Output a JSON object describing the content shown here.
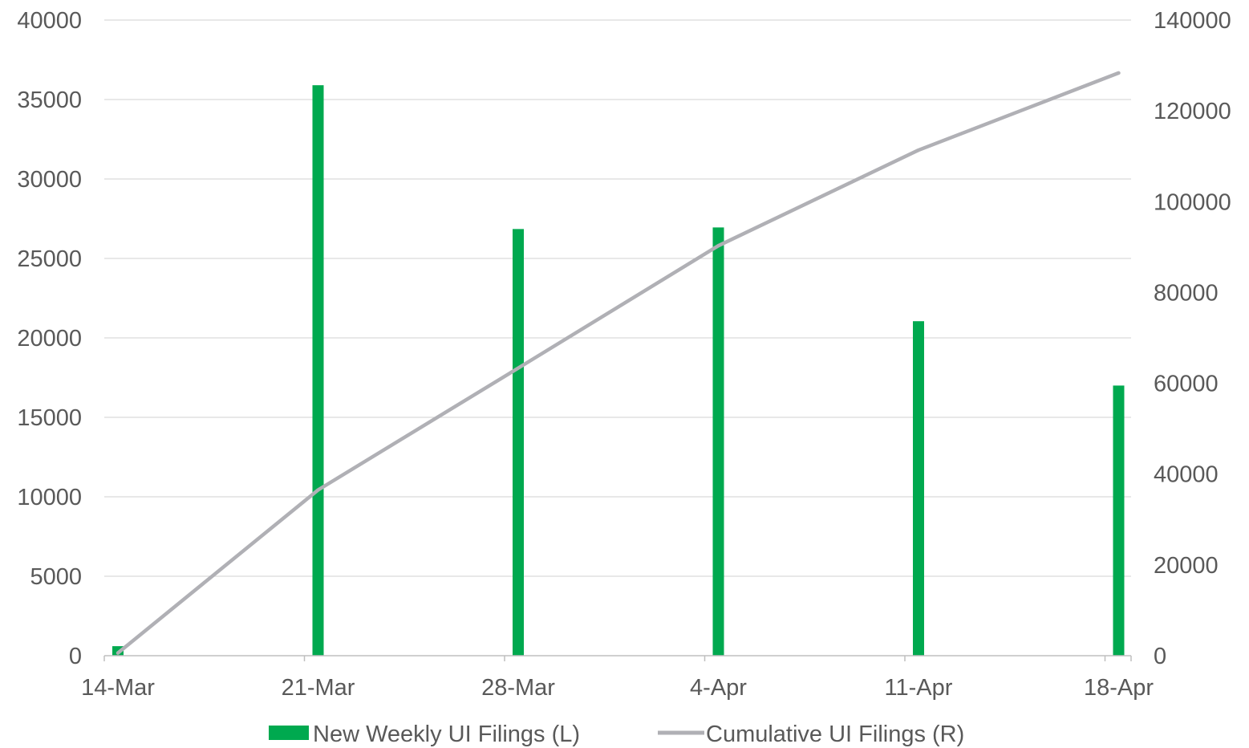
{
  "chart_data": {
    "type": "bar",
    "categories": [
      "14-Mar",
      "21-Mar",
      "28-Mar",
      "4-Apr",
      "11-Apr",
      "18-Apr"
    ],
    "x_tick_labels": [
      "14-Mar",
      "21-Mar",
      "28-Mar",
      "4-Apr",
      "11-Apr",
      "18-Apr"
    ],
    "series": [
      {
        "name": "New Weekly UI Filings (L)",
        "type": "bar",
        "axis": "left",
        "color": "#00A94F",
        "x": [
          "14-Mar",
          "21-Mar",
          "28-Mar",
          "4-Apr",
          "11-Apr",
          "18-Apr"
        ],
        "values": [
          600,
          35900,
          26850,
          26950,
          21050,
          17000
        ]
      },
      {
        "name": "Cumulative UI Filings (R)",
        "type": "line",
        "axis": "right",
        "color": "#B0B0B5",
        "x": [
          "14-Mar",
          "21-Mar",
          "28-Mar",
          "4-Apr",
          "11-Apr",
          "18-Apr"
        ],
        "values": [
          600,
          36500,
          63350,
          90300,
          111350,
          128350
        ]
      }
    ],
    "y_left": {
      "ylim": [
        0,
        40000
      ],
      "ticks": [
        0,
        5000,
        10000,
        15000,
        20000,
        25000,
        30000,
        35000,
        40000
      ],
      "tick_labels": [
        "0",
        "5000",
        "10000",
        "15000",
        "20000",
        "25000",
        "30000",
        "35000",
        "40000"
      ]
    },
    "y_right": {
      "ylim": [
        0,
        140000
      ],
      "ticks": [
        0,
        20000,
        40000,
        60000,
        80000,
        100000,
        120000,
        140000
      ],
      "tick_labels": [
        "0",
        "20000",
        "40000",
        "60000",
        "80000",
        "100000",
        "120000",
        "140000"
      ]
    },
    "title": "",
    "xlabel": "",
    "ylabel": "",
    "grid": true,
    "legend": {
      "position": "bottom",
      "entries": [
        "New Weekly UI Filings (L)",
        "Cumulative UI Filings (R)"
      ]
    },
    "colors": {
      "bar": "#00A94F",
      "line": "#B0B0B5",
      "grid": "#D9D9D9",
      "axis": "#BFBFBF",
      "text": "#595959"
    }
  }
}
